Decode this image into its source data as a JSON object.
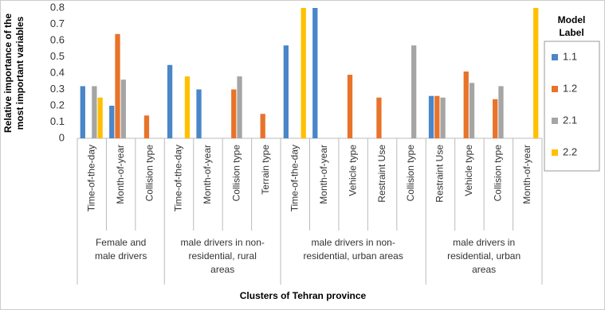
{
  "chart_data": {
    "type": "bar",
    "y_label": [
      "Relative importance of the",
      "most important variables"
    ],
    "x_label": "Clusters of Tehran province",
    "groups": [
      {
        "label": [
          "Female and",
          "male drivers"
        ],
        "categories": [
          "Time-of-the-day",
          "Month-of-year",
          "Collision type"
        ]
      },
      {
        "label": [
          "male drivers in non-",
          "residential, rural",
          "areas"
        ],
        "categories": [
          "Time-of-the-day",
          "Month-of-year",
          "Collision type",
          "Terrain type"
        ]
      },
      {
        "label": [
          "male drivers in non-",
          "residential, urban areas"
        ],
        "categories": [
          "Time-of-the-day",
          "Month-of-year",
          "Vehicle type",
          "Restraint Use",
          "Collision type"
        ]
      },
      {
        "label": [
          "male drivers in",
          "residential, urban",
          "areas"
        ],
        "categories": [
          "Restraint Use",
          "Vehicle type",
          "Collision type",
          "Month-of-year"
        ]
      }
    ],
    "series": [
      {
        "name": "1.1",
        "color": "#4a86c8",
        "values": [
          0.32,
          0.2,
          null,
          0.45,
          0.3,
          null,
          null,
          0.57,
          0.8,
          null,
          null,
          null,
          0.26,
          null,
          null,
          null
        ]
      },
      {
        "name": "1.2",
        "color": "#e8732a",
        "values": [
          null,
          0.64,
          0.14,
          null,
          null,
          0.3,
          0.15,
          null,
          null,
          0.39,
          0.25,
          null,
          0.26,
          0.41,
          0.24,
          null
        ]
      },
      {
        "name": "2.1",
        "color": "#a5a5a5",
        "values": [
          0.32,
          0.36,
          null,
          null,
          null,
          0.38,
          null,
          null,
          null,
          null,
          null,
          0.57,
          0.25,
          0.34,
          0.32,
          null
        ]
      },
      {
        "name": "2.2",
        "color": "#ffc000",
        "values": [
          0.25,
          null,
          null,
          0.38,
          null,
          null,
          null,
          0.8,
          null,
          null,
          null,
          null,
          null,
          null,
          null,
          0.8
        ]
      }
    ],
    "legend_title": [
      "Model",
      "Label"
    ],
    "ylim": [
      0,
      0.8
    ],
    "yticks": [
      0,
      0.1,
      0.2,
      0.3,
      0.4,
      0.5,
      0.6,
      0.7,
      0.8
    ],
    "grid": false
  }
}
